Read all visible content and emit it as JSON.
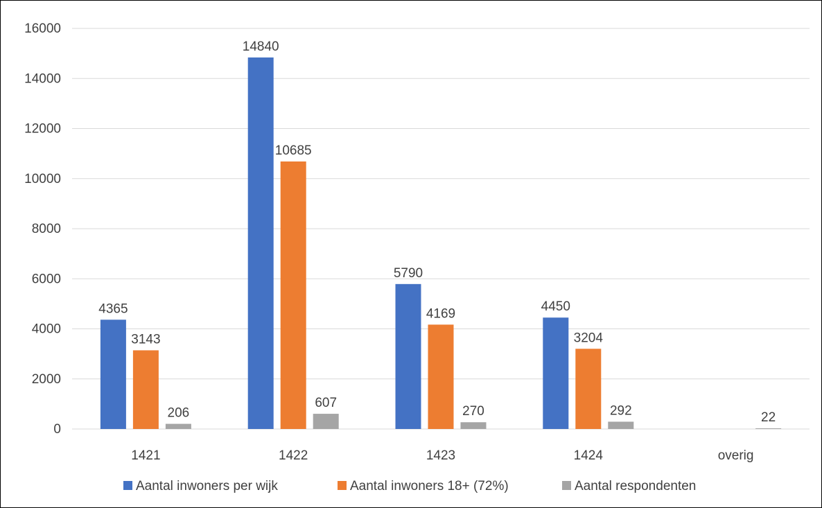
{
  "chart_data": {
    "type": "bar",
    "title": "",
    "xlabel": "",
    "ylabel": "",
    "categories": [
      "1421",
      "1422",
      "1423",
      "1424",
      "overig"
    ],
    "ylim": [
      0,
      16000
    ],
    "yticks": [
      0,
      2000,
      4000,
      6000,
      8000,
      10000,
      12000,
      14000,
      16000
    ],
    "grid": true,
    "legend_position": "bottom",
    "series": [
      {
        "name": "Aantal inwoners per wijk",
        "color": "#4472C4",
        "values": [
          4365,
          14840,
          5790,
          4450,
          null
        ]
      },
      {
        "name": "Aantal inwoners 18+ (72%)",
        "color": "#ED7D31",
        "values": [
          3143,
          10685,
          4169,
          3204,
          null
        ]
      },
      {
        "name": "Aantal respondenten",
        "color": "#A5A5A5",
        "values": [
          206,
          607,
          270,
          292,
          22
        ]
      }
    ]
  }
}
